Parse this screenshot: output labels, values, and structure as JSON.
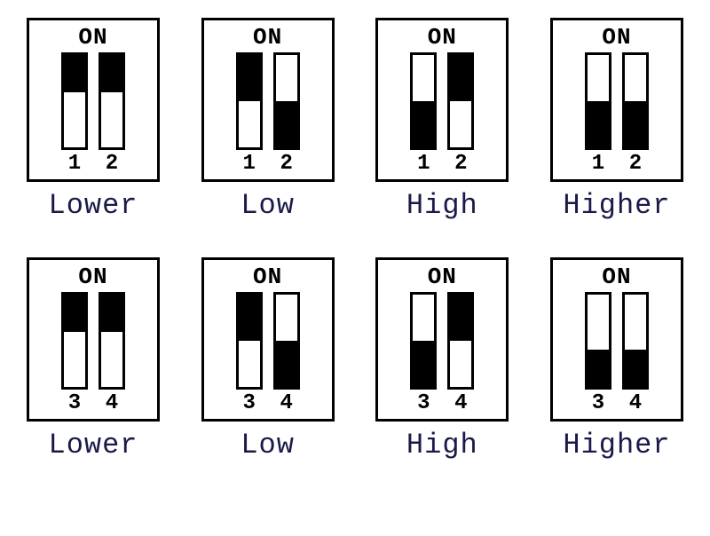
{
  "on_text": "ON",
  "label_color": "#1a1a4a",
  "border_color": "#000000",
  "fill_color": "#000000",
  "background_color": "#ffffff",
  "rows": [
    {
      "switch_numbers": [
        "1",
        "2"
      ],
      "units": [
        {
          "label": "Lower",
          "switches": [
            {
              "fill_position": "top",
              "fill_percent": 40
            },
            {
              "fill_position": "top",
              "fill_percent": 40
            }
          ]
        },
        {
          "label": "Low",
          "switches": [
            {
              "fill_position": "top",
              "fill_percent": 50
            },
            {
              "fill_position": "bottom",
              "fill_percent": 50
            }
          ]
        },
        {
          "label": "High",
          "switches": [
            {
              "fill_position": "bottom",
              "fill_percent": 50
            },
            {
              "fill_position": "top",
              "fill_percent": 50
            }
          ]
        },
        {
          "label": "Higher",
          "switches": [
            {
              "fill_position": "bottom",
              "fill_percent": 50
            },
            {
              "fill_position": "bottom",
              "fill_percent": 50
            }
          ]
        }
      ]
    },
    {
      "switch_numbers": [
        "3",
        "4"
      ],
      "units": [
        {
          "label": "Lower",
          "switches": [
            {
              "fill_position": "top",
              "fill_percent": 40
            },
            {
              "fill_position": "top",
              "fill_percent": 40
            }
          ]
        },
        {
          "label": "Low",
          "switches": [
            {
              "fill_position": "top",
              "fill_percent": 50
            },
            {
              "fill_position": "bottom",
              "fill_percent": 50
            }
          ]
        },
        {
          "label": "High",
          "switches": [
            {
              "fill_position": "bottom",
              "fill_percent": 50
            },
            {
              "fill_position": "top",
              "fill_percent": 50
            }
          ]
        },
        {
          "label": "Higher",
          "switches": [
            {
              "fill_position": "bottom",
              "fill_percent": 40
            },
            {
              "fill_position": "bottom",
              "fill_percent": 40
            }
          ]
        }
      ]
    }
  ]
}
